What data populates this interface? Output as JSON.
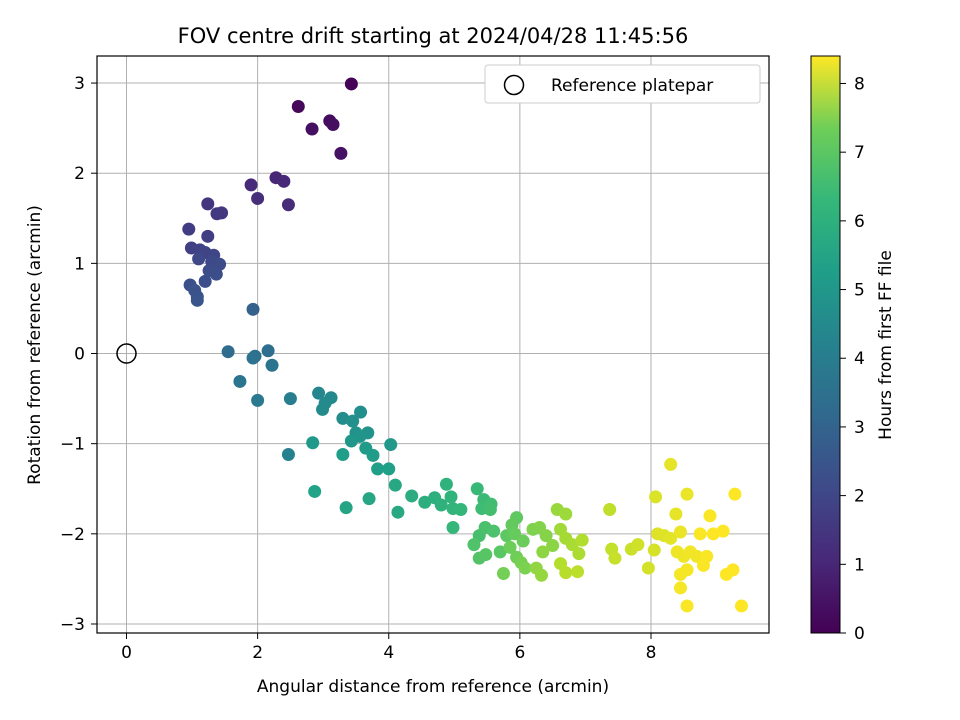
{
  "chart_data": {
    "type": "scatter",
    "title": "FOV centre drift starting at 2024/04/28 11:45:56",
    "xlabel": "Angular distance from reference (arcmin)",
    "ylabel": "Rotation from reference (arcmin)",
    "xlim": [
      -0.45,
      9.8
    ],
    "ylim": [
      -3.1,
      3.3
    ],
    "xticks": [
      "0",
      "2",
      "4",
      "6",
      "8"
    ],
    "yticks": [
      "3",
      "2",
      "1",
      "0",
      "−1",
      "−2",
      "−3"
    ],
    "grid": true,
    "legend": {
      "placement": "top-right",
      "entries": [
        "Reference platepar"
      ]
    },
    "reference_point": {
      "x": 0,
      "y": 0,
      "marker": "hollow-circle"
    },
    "colorbar": {
      "label": "Hours from first FF file",
      "colormap": "viridis",
      "range": [
        0,
        8.4
      ],
      "ticks": [
        "0",
        "1",
        "2",
        "3",
        "4",
        "5",
        "6",
        "7",
        "8"
      ]
    },
    "series": [
      {
        "values": [
          [
            3.43,
            2.99,
            0.05
          ],
          [
            2.62,
            2.74,
            0.15
          ],
          [
            3.1,
            2.58,
            0.25
          ],
          [
            3.15,
            2.54,
            0.3
          ],
          [
            2.83,
            2.49,
            0.35
          ],
          [
            3.27,
            2.22,
            0.4
          ],
          [
            2.28,
            1.95,
            0.9
          ],
          [
            2.4,
            1.91,
            0.95
          ],
          [
            1.9,
            1.87,
            1.0
          ],
          [
            2.47,
            1.65,
            1.05
          ],
          [
            2.0,
            1.72,
            1.1
          ],
          [
            1.24,
            1.66,
            1.3
          ],
          [
            1.45,
            1.56,
            1.35
          ],
          [
            1.38,
            1.55,
            1.4
          ],
          [
            0.95,
            1.38,
            1.5
          ],
          [
            1.24,
            1.3,
            1.55
          ],
          [
            0.99,
            1.17,
            1.6
          ],
          [
            1.12,
            1.15,
            1.65
          ],
          [
            1.2,
            1.12,
            1.7
          ],
          [
            1.33,
            1.09,
            1.75
          ],
          [
            1.1,
            1.05,
            1.8
          ],
          [
            1.3,
            1.02,
            1.85
          ],
          [
            1.42,
            0.99,
            1.9
          ],
          [
            1.26,
            0.92,
            1.95
          ],
          [
            1.37,
            0.88,
            2.0
          ],
          [
            1.2,
            0.8,
            2.0
          ],
          [
            0.97,
            0.76,
            2.05
          ],
          [
            1.04,
            0.7,
            2.1
          ],
          [
            1.08,
            0.63,
            2.15
          ],
          [
            1.08,
            0.59,
            2.2
          ],
          [
            1.93,
            0.49,
            2.6
          ],
          [
            1.55,
            0.02,
            2.95
          ],
          [
            2.16,
            0.03,
            3.0
          ],
          [
            1.96,
            -0.03,
            3.1
          ],
          [
            1.93,
            -0.05,
            3.15
          ],
          [
            2.22,
            -0.13,
            3.2
          ],
          [
            1.73,
            -0.31,
            3.25
          ],
          [
            2.0,
            -0.52,
            3.4
          ],
          [
            2.5,
            -0.5,
            3.6
          ],
          [
            2.47,
            -1.12,
            3.7
          ],
          [
            2.93,
            -0.44,
            3.9
          ],
          [
            3.12,
            -0.49,
            3.95
          ],
          [
            3.03,
            -0.55,
            4.0
          ],
          [
            2.99,
            -0.62,
            4.05
          ],
          [
            3.3,
            -0.72,
            4.1
          ],
          [
            3.57,
            -0.65,
            4.15
          ],
          [
            3.45,
            -0.75,
            4.2
          ],
          [
            3.5,
            -0.88,
            4.25
          ],
          [
            3.68,
            -0.88,
            4.3
          ],
          [
            3.56,
            -0.92,
            4.35
          ],
          [
            3.43,
            -0.97,
            4.4
          ],
          [
            4.03,
            -1.01,
            4.45
          ],
          [
            2.84,
            -0.99,
            4.5
          ],
          [
            3.65,
            -1.05,
            4.55
          ],
          [
            3.76,
            -1.13,
            4.6
          ],
          [
            3.3,
            -1.12,
            4.65
          ],
          [
            3.83,
            -1.28,
            4.7
          ],
          [
            4.0,
            -1.28,
            4.75
          ],
          [
            2.87,
            -1.53,
            4.8
          ],
          [
            3.35,
            -1.71,
            4.9
          ],
          [
            3.7,
            -1.61,
            4.95
          ],
          [
            4.1,
            -1.46,
            5.0
          ],
          [
            4.14,
            -1.76,
            5.05
          ],
          [
            4.35,
            -1.58,
            5.2
          ],
          [
            4.55,
            -1.65,
            5.25
          ],
          [
            4.7,
            -1.6,
            5.3
          ],
          [
            4.8,
            -1.68,
            5.35
          ],
          [
            4.88,
            -1.45,
            5.4
          ],
          [
            4.95,
            -1.59,
            5.45
          ],
          [
            4.98,
            -1.72,
            5.5
          ],
          [
            5.1,
            -1.73,
            5.55
          ],
          [
            4.98,
            -1.93,
            5.6
          ],
          [
            5.35,
            -1.5,
            5.65
          ],
          [
            5.45,
            -1.62,
            5.7
          ],
          [
            5.42,
            -1.72,
            5.75
          ],
          [
            5.56,
            -1.67,
            5.8
          ],
          [
            5.55,
            -1.73,
            5.85
          ],
          [
            5.38,
            -2.02,
            5.9
          ],
          [
            5.47,
            -1.93,
            5.95
          ],
          [
            5.6,
            -1.97,
            6.0
          ],
          [
            5.3,
            -2.12,
            6.05
          ],
          [
            5.38,
            -2.27,
            6.1
          ],
          [
            5.48,
            -2.23,
            6.15
          ],
          [
            5.7,
            -2.2,
            6.2
          ],
          [
            5.8,
            -2.02,
            6.25
          ],
          [
            5.95,
            -1.82,
            6.3
          ],
          [
            5.88,
            -1.9,
            6.35
          ],
          [
            5.92,
            -2.0,
            6.4
          ],
          [
            6.05,
            -2.08,
            6.45
          ],
          [
            5.85,
            -2.15,
            6.5
          ],
          [
            5.95,
            -2.26,
            6.55
          ],
          [
            5.75,
            -2.44,
            6.6
          ],
          [
            6.02,
            -2.32,
            6.65
          ],
          [
            6.08,
            -2.38,
            6.7
          ],
          [
            6.2,
            -1.95,
            6.75
          ],
          [
            6.3,
            -1.93,
            6.8
          ],
          [
            6.4,
            -2.02,
            6.85
          ],
          [
            6.5,
            -2.13,
            6.9
          ],
          [
            6.35,
            -2.2,
            6.95
          ],
          [
            6.25,
            -2.38,
            7.0
          ],
          [
            6.33,
            -2.46,
            7.05
          ],
          [
            6.57,
            -1.73,
            7.1
          ],
          [
            6.7,
            -1.78,
            7.15
          ],
          [
            6.62,
            -1.95,
            7.2
          ],
          [
            6.7,
            -2.05,
            7.25
          ],
          [
            6.8,
            -2.12,
            7.3
          ],
          [
            6.9,
            -2.22,
            7.35
          ],
          [
            6.95,
            -2.07,
            7.4
          ],
          [
            6.62,
            -2.33,
            7.45
          ],
          [
            6.7,
            -2.43,
            7.5
          ],
          [
            6.88,
            -2.42,
            7.55
          ],
          [
            7.37,
            -1.73,
            7.6
          ],
          [
            7.4,
            -2.17,
            7.65
          ],
          [
            7.45,
            -2.27,
            7.7
          ],
          [
            7.7,
            -2.17,
            7.75
          ],
          [
            7.8,
            -2.12,
            7.8
          ],
          [
            7.96,
            -2.38,
            7.85
          ],
          [
            8.05,
            -2.18,
            7.9
          ],
          [
            8.07,
            -1.59,
            7.95
          ],
          [
            8.1,
            -2.0,
            8.0
          ],
          [
            8.2,
            -2.02,
            8.0
          ],
          [
            8.3,
            -2.05,
            8.05
          ],
          [
            8.3,
            -1.23,
            8.1
          ],
          [
            8.38,
            -1.78,
            8.1
          ],
          [
            8.45,
            -1.98,
            8.15
          ],
          [
            8.55,
            -1.56,
            8.15
          ],
          [
            8.4,
            -2.2,
            8.2
          ],
          [
            8.5,
            -2.25,
            8.2
          ],
          [
            8.6,
            -2.2,
            8.25
          ],
          [
            8.7,
            -2.25,
            8.25
          ],
          [
            8.45,
            -2.45,
            8.3
          ],
          [
            8.55,
            -2.4,
            8.3
          ],
          [
            8.45,
            -2.6,
            8.3
          ],
          [
            8.55,
            -2.8,
            8.35
          ],
          [
            8.8,
            -2.35,
            8.35
          ],
          [
            8.9,
            -1.8,
            8.35
          ],
          [
            8.95,
            -2.0,
            8.4
          ],
          [
            9.1,
            -1.97,
            8.4
          ],
          [
            9.28,
            -1.56,
            8.4
          ],
          [
            9.15,
            -2.45,
            8.4
          ],
          [
            9.25,
            -2.4,
            8.4
          ],
          [
            9.38,
            -2.8,
            8.4
          ],
          [
            8.75,
            -2.0,
            8.35
          ],
          [
            8.85,
            -2.25,
            8.35
          ]
        ]
      }
    ]
  }
}
